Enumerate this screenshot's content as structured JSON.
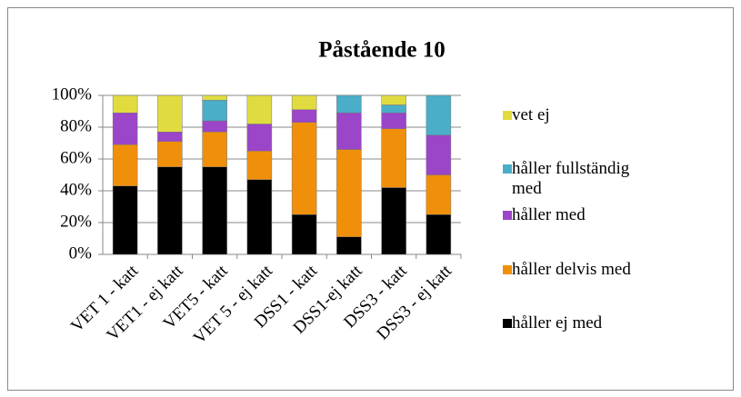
{
  "chart_data": {
    "type": "stacked_bar",
    "title": "Påstående 10",
    "categories": [
      "VET 1 - katt",
      "VET1 - ej katt",
      "VET5 - katt",
      "VET 5 - ej katt",
      "DSS1 - katt",
      "DSS1-ej katt",
      "DSS3 - katt",
      "DSS3 - ej katt"
    ],
    "series": [
      {
        "name": "håller ej med",
        "color": "#000000",
        "values": [
          43,
          55,
          55,
          47,
          25,
          11,
          42,
          25
        ]
      },
      {
        "name": "håller delvis med",
        "color": "#f0900a",
        "values": [
          26,
          16,
          22,
          18,
          58,
          55,
          37,
          25
        ]
      },
      {
        "name": "håller med",
        "color": "#9b45c8",
        "values": [
          20,
          6,
          7,
          17,
          8,
          23,
          10,
          25
        ]
      },
      {
        "name": "håller fullständig med",
        "color": "#4aaec8",
        "values": [
          0,
          0,
          13,
          0,
          0,
          11,
          5,
          25
        ]
      },
      {
        "name": "vet ej",
        "color": "#e0dc40",
        "values": [
          11,
          23,
          3,
          18,
          9,
          0,
          6,
          0
        ]
      }
    ],
    "ylim": [
      0,
      100
    ],
    "yticks": [
      {
        "value": 0,
        "label": "0%"
      },
      {
        "value": 20,
        "label": "20%"
      },
      {
        "value": 40,
        "label": "40%"
      },
      {
        "value": 60,
        "label": "60%"
      },
      {
        "value": 80,
        "label": "80%"
      },
      {
        "value": 100,
        "label": "100%"
      }
    ],
    "grid": true,
    "legend": "right"
  }
}
